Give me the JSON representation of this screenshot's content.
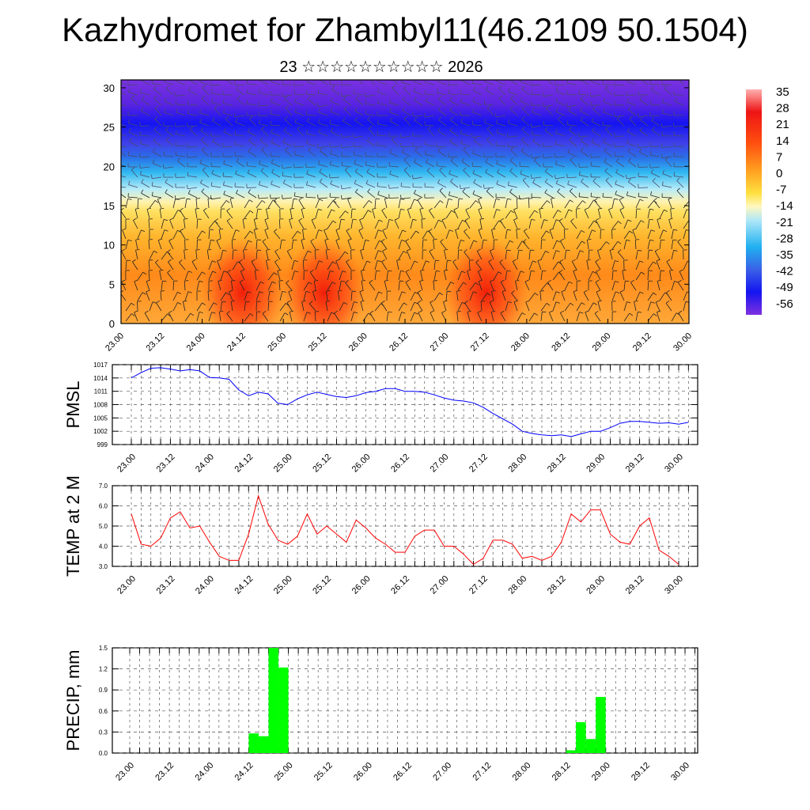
{
  "title": "Kazhydromet for Zhambyl11(46.2109 50.1504)",
  "subtitle": "23 ☆☆☆☆☆☆☆☆☆☆ 2026",
  "time_labels": [
    "23.00",
    "23.12",
    "24.00",
    "24.12",
    "25.00",
    "25.12",
    "26.00",
    "26.12",
    "27.00",
    "27.12",
    "28.00",
    "28.12",
    "29.00",
    "29.12",
    "30.00"
  ],
  "chart_data": [
    {
      "type": "heatmap",
      "title": "",
      "x": [
        "23.00",
        "23.12",
        "24.00",
        "24.12",
        "25.00",
        "25.12",
        "26.00",
        "26.12",
        "27.00",
        "27.12",
        "28.00",
        "28.12",
        "29.00",
        "29.12",
        "30.00"
      ],
      "ylabel": "",
      "ylim": [
        0,
        31
      ],
      "yticks": [
        0,
        5,
        10,
        15,
        20,
        25,
        30
      ],
      "colorbar_labels": [
        "35",
        "28",
        "21",
        "14",
        "7",
        "0",
        "-7",
        "-14",
        "-21",
        "-28",
        "-35",
        "-42",
        "-49",
        "-56"
      ],
      "colorbar_range": [
        -63,
        42
      ],
      "overlay": "wind barbs",
      "surface_warm_cores_x": [
        "24.12",
        "25.12",
        "27.12"
      ]
    },
    {
      "type": "line",
      "ylabel": "PMSL",
      "ylim": [
        999,
        1017
      ],
      "yticks": [
        "999",
        "1002",
        "1005",
        "1008",
        "1011",
        "1014",
        "1017"
      ],
      "color": "#0000ff",
      "x_step_hours": 3,
      "values": [
        1014.0,
        1015.2,
        1016.2,
        1016.3,
        1016.0,
        1015.6,
        1015.9,
        1015.6,
        1014.1,
        1014.0,
        1013.7,
        1011.3,
        1010.0,
        1010.8,
        1010.4,
        1008.3,
        1008.0,
        1009.3,
        1010.2,
        1010.8,
        1010.3,
        1009.8,
        1009.6,
        1010.0,
        1010.7,
        1011.0,
        1011.6,
        1011.6,
        1011.0,
        1011.0,
        1010.8,
        1010.2,
        1009.5,
        1009.0,
        1008.8,
        1008.4,
        1007.4,
        1006.0,
        1004.8,
        1003.6,
        1002.0,
        1001.5,
        1001.2,
        1001.0,
        1001.2,
        1000.8,
        1001.4,
        1002.0,
        1002.0,
        1002.8,
        1003.8,
        1004.2,
        1004.2,
        1004.0,
        1003.8,
        1003.9,
        1003.6,
        1004.0
      ]
    },
    {
      "type": "line",
      "ylabel": "TEMP at 2 M",
      "ylim": [
        3.0,
        7.0
      ],
      "yticks": [
        "3.0",
        "4.0",
        "5.0",
        "6.0",
        "7.0"
      ],
      "color": "#ff0000",
      "x_step_hours": 3,
      "values": [
        5.6,
        4.1,
        4.0,
        4.4,
        5.4,
        5.7,
        4.9,
        5.0,
        4.2,
        3.5,
        3.3,
        3.3,
        4.6,
        6.5,
        5.1,
        4.3,
        4.1,
        4.5,
        5.6,
        4.6,
        5.0,
        4.6,
        4.2,
        5.3,
        4.9,
        4.4,
        4.1,
        3.7,
        3.7,
        4.5,
        4.8,
        4.8,
        4.0,
        4.0,
        3.6,
        3.1,
        3.4,
        4.3,
        4.3,
        4.1,
        3.4,
        3.5,
        3.3,
        3.5,
        4.2,
        5.6,
        5.2,
        5.8,
        5.8,
        4.6,
        4.2,
        4.1,
        5.0,
        5.4,
        3.8,
        3.5,
        3.1
      ]
    },
    {
      "type": "bar",
      "ylabel": "PRECIP, mm",
      "ylim": [
        0,
        1.5
      ],
      "yticks": [
        "0.0",
        "0.3",
        "0.6",
        "0.9",
        "1.2",
        "1.5"
      ],
      "color": "#00ff00",
      "x_step_hours": 3,
      "values": [
        0,
        0,
        0,
        0,
        0,
        0,
        0,
        0,
        0,
        0,
        0,
        0,
        0.28,
        0.24,
        1.5,
        1.22,
        0,
        0,
        0,
        0,
        0,
        0,
        0,
        0,
        0,
        0,
        0,
        0,
        0,
        0,
        0,
        0,
        0,
        0,
        0,
        0,
        0,
        0,
        0,
        0,
        0,
        0,
        0,
        0,
        0.04,
        0.44,
        0.2,
        0.8,
        0,
        0,
        0,
        0,
        0,
        0,
        0,
        0
      ]
    }
  ]
}
